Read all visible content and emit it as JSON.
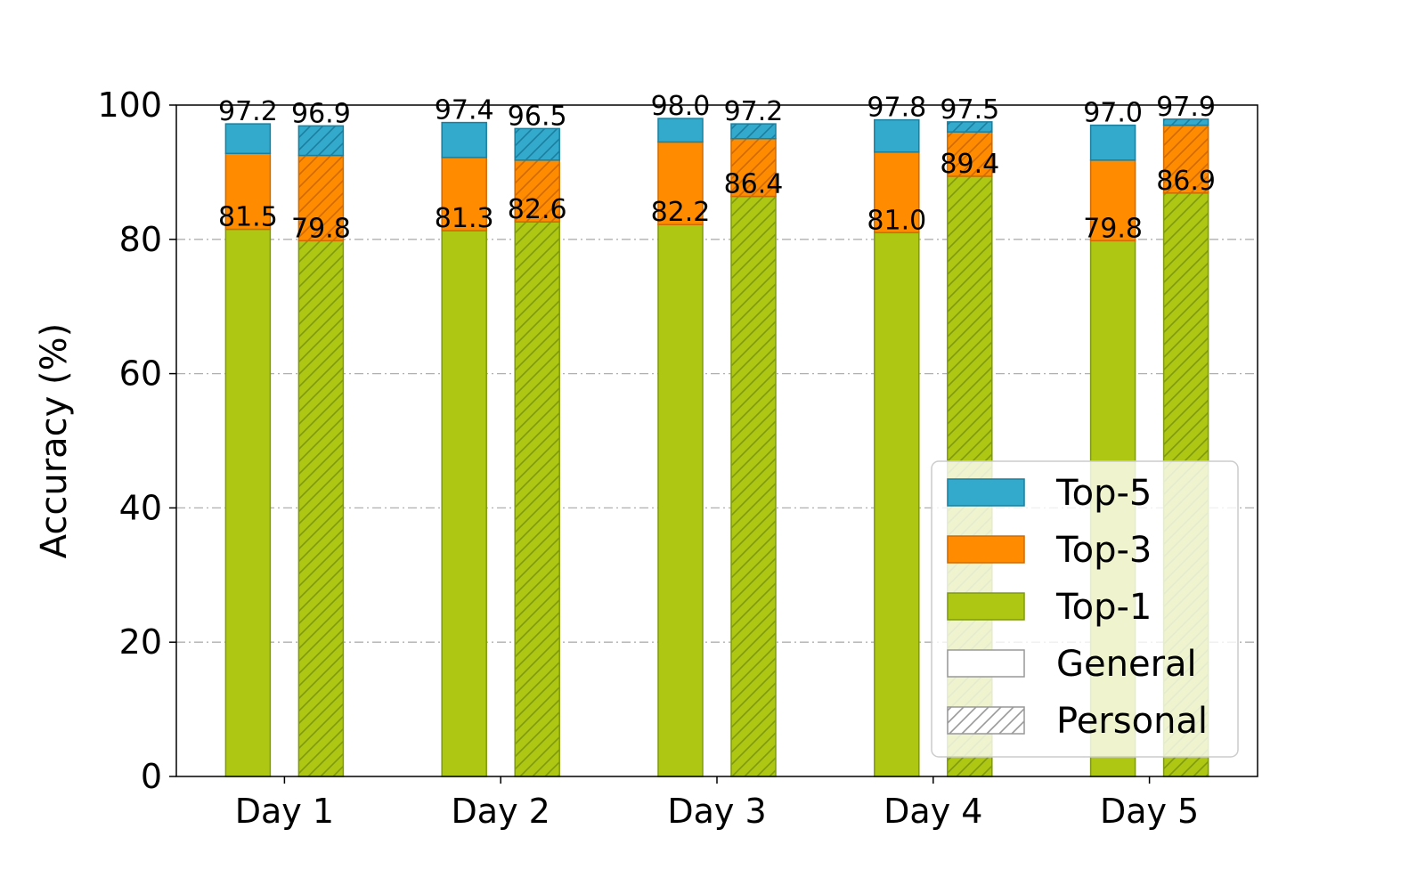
{
  "chart_data": {
    "type": "bar",
    "stacked": true,
    "categories": [
      "Day 1",
      "Day 2",
      "Day 3",
      "Day 4",
      "Day 5"
    ],
    "ylabel": "Accuracy (%)",
    "xlabel": "",
    "ylim": [
      0,
      100
    ],
    "yticks": [
      0,
      20,
      40,
      60,
      80,
      100
    ],
    "grid": "horizontal dash-dot",
    "legend_position": "lower-right",
    "groups": [
      {
        "name": "General",
        "hatch": "none",
        "top1": [
          81.5,
          81.3,
          82.2,
          81.0,
          79.8
        ],
        "top3": [
          92.8,
          92.2,
          94.5,
          93.0,
          91.8
        ],
        "top5": [
          97.2,
          97.4,
          98.0,
          97.8,
          97.0
        ]
      },
      {
        "name": "Personal",
        "hatch": "diagonal",
        "top1": [
          79.8,
          82.6,
          86.4,
          89.4,
          86.9
        ],
        "top3": [
          92.5,
          91.8,
          95.0,
          96.0,
          97.0
        ],
        "top5": [
          96.9,
          96.5,
          97.2,
          97.5,
          97.9
        ]
      }
    ],
    "series": [
      {
        "name": "Top-5",
        "color": "#33aacc",
        "edge": "#1a7f9f"
      },
      {
        "name": "Top-3",
        "color": "#ff8c00",
        "edge": "#d06a00"
      },
      {
        "name": "Top-1",
        "color": "#aec712",
        "edge": "#7f9a10"
      }
    ],
    "legend": [
      {
        "label": "Top-5",
        "style": "Top-5"
      },
      {
        "label": "Top-3",
        "style": "Top-3"
      },
      {
        "label": "Top-1",
        "style": "Top-1"
      },
      {
        "label": "General",
        "style": "plain"
      },
      {
        "label": "Personal",
        "style": "hatched"
      }
    ]
  }
}
